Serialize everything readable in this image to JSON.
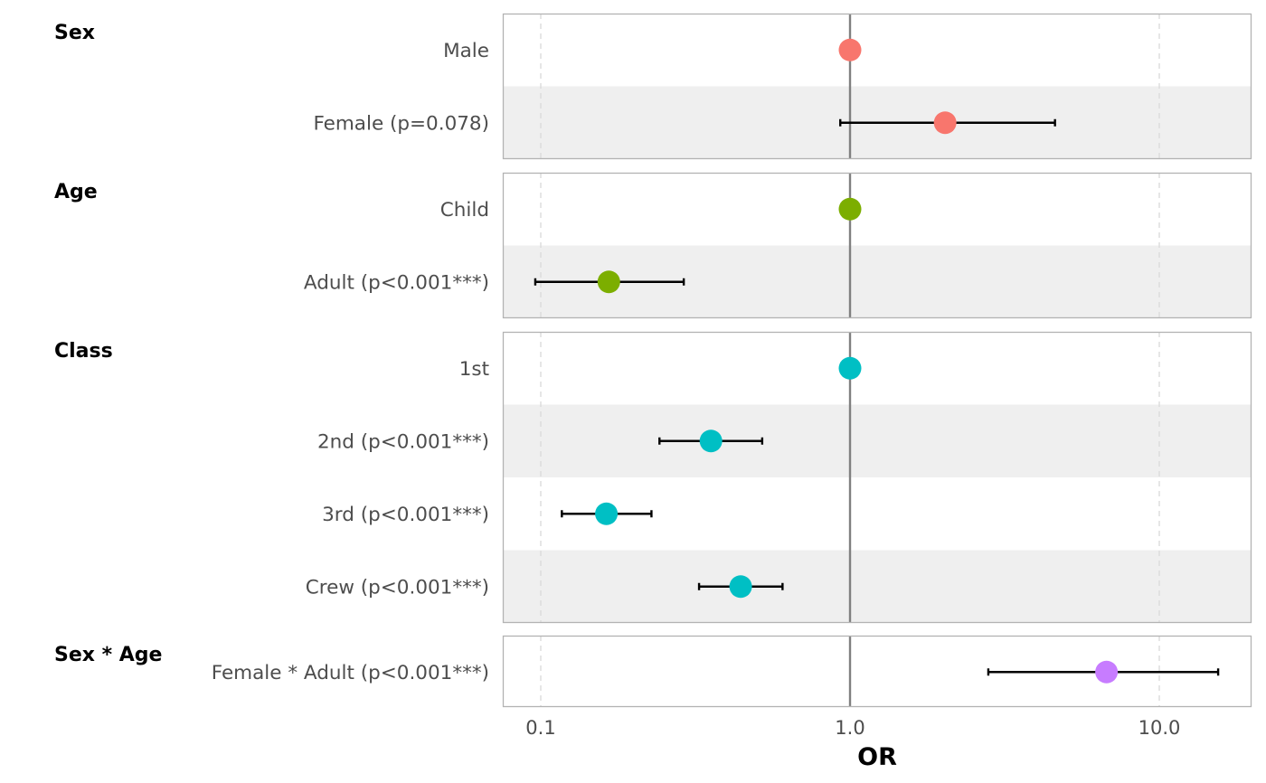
{
  "chart_data": {
    "type": "forest",
    "xlabel": "OR",
    "x_scale": "log10",
    "xlim": [
      0.075,
      17
    ],
    "x_ticks": [
      {
        "value": 0.1,
        "label": "0.1"
      },
      {
        "value": 1.0,
        "label": "1.0"
      },
      {
        "value": 10.0,
        "label": "10.0"
      }
    ],
    "reference_line": 1.0,
    "grid": "vertical-dashed",
    "legend": "none",
    "groups": [
      {
        "name": "Sex",
        "color": "#F8766D",
        "rows": [
          {
            "label": "Male",
            "or": 1.0
          },
          {
            "label": "Female (p=0.078)",
            "or": 2.03,
            "ci_low": 0.93,
            "ci_high": 4.6
          }
        ]
      },
      {
        "name": "Age",
        "color": "#7CAE00",
        "rows": [
          {
            "label": "Child",
            "or": 1.0
          },
          {
            "label": "Adult (p<0.001***)",
            "or": 0.166,
            "ci_low": 0.096,
            "ci_high": 0.29
          }
        ]
      },
      {
        "name": "Class",
        "color": "#00BFC4",
        "rows": [
          {
            "label": "1st",
            "or": 1.0
          },
          {
            "label": "2nd (p<0.001***)",
            "or": 0.355,
            "ci_low": 0.242,
            "ci_high": 0.52
          },
          {
            "label": "3rd (p<0.001***)",
            "or": 0.163,
            "ci_low": 0.117,
            "ci_high": 0.228
          },
          {
            "label": "Crew (p<0.001***)",
            "or": 0.443,
            "ci_low": 0.325,
            "ci_high": 0.605
          }
        ]
      },
      {
        "name": "Sex * Age",
        "color": "#C77CFF",
        "rows": [
          {
            "label": "Female * Adult (p<0.001***)",
            "or": 6.75,
            "ci_low": 2.8,
            "ci_high": 15.5
          }
        ]
      }
    ]
  }
}
